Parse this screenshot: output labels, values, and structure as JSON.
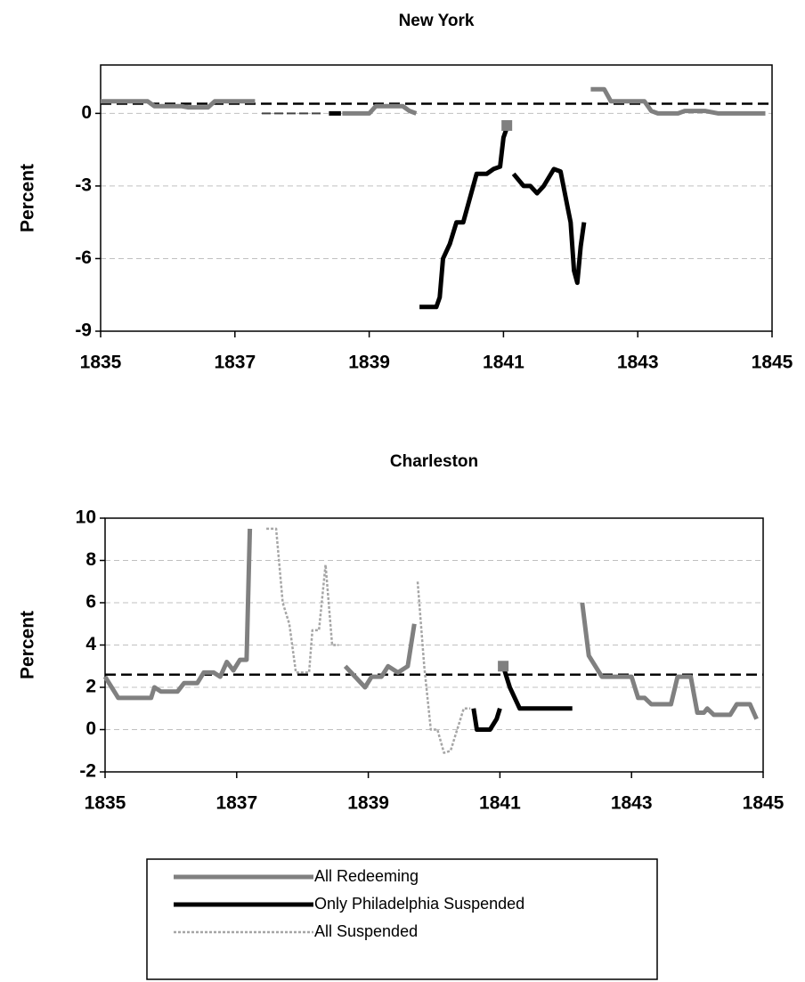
{
  "chart_data": [
    {
      "type": "line",
      "title": "New York",
      "ylabel": "Percent",
      "xlim": [
        1835,
        1845
      ],
      "xticks": [
        1835,
        1837,
        1839,
        1841,
        1843,
        1845
      ],
      "ylim": [
        -9,
        2
      ],
      "yticks": [
        -9,
        -6,
        -3,
        0
      ],
      "grid": true,
      "reference_line": 0.4,
      "markers": {
        "color": "#808080",
        "x": [
          1841.05
        ],
        "values": [
          -0.5
        ]
      },
      "series": [
        {
          "name": "All Redeeming",
          "color": "#808080",
          "style": "solid",
          "x": [
            1835,
            1835.7,
            1835.8,
            1836.2,
            1836.3,
            1836.6,
            1836.7,
            1837.3,
            null,
            1838.6,
            1839.0,
            1839.1,
            1839.5,
            1839.6,
            1839.7,
            null,
            1842.3,
            1842.5,
            1842.6,
            1843.1,
            1843.2,
            1843.3,
            1843.6,
            1843.7,
            1844.0,
            1844.2,
            1844.9
          ],
          "values": [
            0.5,
            0.5,
            0.3,
            0.3,
            0.25,
            0.25,
            0.5,
            0.5,
            null,
            0,
            0,
            0.3,
            0.3,
            0.1,
            0,
            null,
            1.0,
            1.0,
            0.5,
            0.5,
            0.1,
            0,
            0,
            0.1,
            0.1,
            0,
            0
          ]
        },
        {
          "name": "Only Philadelphia Suspended",
          "color": "#000000",
          "style": "solid",
          "x": [
            1838.4,
            1838.58,
            null,
            1839.75,
            1840.0,
            1840.05,
            1840.1,
            1840.2,
            1840.3,
            1840.4,
            1840.5,
            1840.6,
            1840.75,
            1840.85,
            1840.95,
            1841.0,
            1841.05,
            null,
            1841.15,
            1841.3,
            1841.4,
            1841.5,
            1841.6,
            1841.75,
            1841.85,
            1841.95,
            1842.0,
            1842.05,
            1842.1,
            1842.15,
            1842.2
          ],
          "values": [
            0,
            0,
            null,
            -8,
            -8,
            -7.6,
            -6.0,
            -5.4,
            -4.5,
            -4.5,
            -3.5,
            -2.5,
            -2.5,
            -2.3,
            -2.2,
            -1.0,
            -0.6,
            null,
            -2.5,
            -3.0,
            -3.0,
            -3.3,
            -3.0,
            -2.3,
            -2.4,
            -3.8,
            -4.5,
            -6.5,
            -7.0,
            -5.5,
            -4.5
          ]
        },
        {
          "name": "All Suspended",
          "color": "#444444",
          "style": "dashed",
          "x": [
            1837.4,
            1838.3
          ],
          "values": [
            0,
            0
          ]
        }
      ]
    },
    {
      "type": "line",
      "title": "Charleston",
      "ylabel": "Percent",
      "xlim": [
        1835,
        1845
      ],
      "xticks": [
        1835,
        1837,
        1839,
        1841,
        1843,
        1845
      ],
      "ylim": [
        -2,
        10
      ],
      "yticks": [
        -2,
        0,
        2,
        4,
        6,
        8,
        10
      ],
      "grid": true,
      "reference_line": 2.6,
      "markers": {
        "color": "#808080",
        "x": [
          1841.05
        ],
        "values": [
          3
        ]
      },
      "series": [
        {
          "name": "All Redeeming",
          "color": "#808080",
          "style": "solid",
          "x": [
            1835,
            1835.1,
            1835.2,
            1835.6,
            1835.7,
            1835.75,
            1835.85,
            1836.1,
            1836.2,
            1836.4,
            1836.5,
            1836.65,
            1836.75,
            1836.85,
            1836.95,
            1837.05,
            1837.15,
            1837.2,
            null,
            1838.65,
            1838.8,
            1838.95,
            1839.05,
            1839.2,
            1839.3,
            1839.45,
            1839.6,
            1839.7,
            null,
            1842.25,
            1842.35,
            1842.45,
            1842.55,
            1843.0,
            1843.1,
            1843.2,
            1843.3,
            1843.6,
            1843.7,
            1843.9,
            1844.0,
            1844.1,
            1844.15,
            1844.25,
            1844.5,
            1844.6,
            1844.8,
            1844.9
          ],
          "values": [
            2.5,
            2.0,
            1.5,
            1.5,
            1.5,
            2.0,
            1.8,
            1.8,
            2.2,
            2.2,
            2.7,
            2.7,
            2.5,
            3.2,
            2.8,
            3.3,
            3.3,
            9.5,
            null,
            3.0,
            2.5,
            2.0,
            2.5,
            2.5,
            3.0,
            2.7,
            3.0,
            5.0,
            null,
            6.0,
            3.5,
            3.0,
            2.5,
            2.5,
            1.5,
            1.5,
            1.2,
            1.2,
            2.5,
            2.5,
            0.8,
            0.8,
            1.0,
            0.7,
            0.7,
            1.2,
            1.2,
            0.5
          ]
        },
        {
          "name": "Only Philadelphia Suspended",
          "color": "#000000",
          "style": "solid",
          "x": [
            1840.6,
            1840.65,
            1840.85,
            1840.95,
            1841.0,
            null,
            1841.05,
            1841.15,
            1841.3,
            1842.1
          ],
          "values": [
            1.0,
            0,
            0,
            0.5,
            1.0,
            null,
            3.0,
            2.0,
            1.0,
            1.0
          ]
        },
        {
          "name": "All Suspended",
          "color": "#a6a6a6",
          "style": "dotted",
          "x": [
            1837.45,
            1837.6,
            1837.7,
            1837.8,
            1837.9,
            1838.1,
            1838.15,
            1838.25,
            1838.35,
            1838.45,
            1838.55,
            null,
            1839.75,
            1839.85,
            1839.95,
            1840.05,
            1840.15,
            1840.25,
            1840.35,
            1840.45,
            1840.55
          ],
          "values": [
            9.5,
            9.5,
            6.0,
            5.0,
            2.7,
            2.7,
            4.7,
            4.7,
            7.8,
            4.0,
            4.0,
            null,
            7.0,
            3.0,
            0,
            0,
            -1.1,
            -1.0,
            0,
            1.0,
            1.0
          ]
        }
      ]
    }
  ]
}
